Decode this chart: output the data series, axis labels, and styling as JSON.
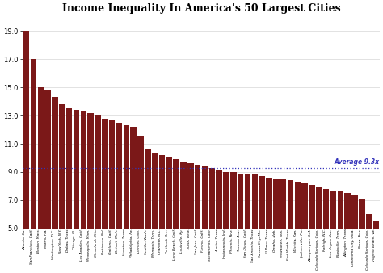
{
  "title": "Income Inequality In America's 50 Largest Cities",
  "ylim": [
    5.0,
    20.0
  ],
  "yticks": [
    5.0,
    7.0,
    9.0,
    11.0,
    13.0,
    15.0,
    17.0,
    19.0
  ],
  "average_line": 9.3,
  "average_label": "Average 9.3x",
  "bar_color": "#7B1818",
  "line_color": "#3333BB",
  "cities": [
    "Atlanta, Ga.",
    "San Francisco, Calif.",
    "Boston, Mass.",
    "Miami, Fla.",
    "Washington, D.C.",
    "New York, N.Y.",
    "Dallas, Texas",
    "Chicago, Ill.",
    "Los Angeles, Calif.",
    "Minneapolis, Minn.",
    "Cleveland, Ohio",
    "Baltimore, Md.",
    "Oakland, Calif.",
    "Detroit, Mich.",
    "Houston, Texas",
    "Philadelphia, Pa.",
    "Denver, Colo.",
    "Seattle, Wash.",
    "Memphis, Tenn.",
    "Charlotte, N.C.",
    "Portland, Ore.",
    "Long Beach, Calif.",
    "Louisville, Ky.",
    "Tulsa, Okla.",
    "San Jose, Calif.",
    "Fresno, Calif.",
    "Sacramento, Calif.",
    "Austin, Texas",
    "Indianapolis, Ind.",
    "Phoenix, Ariz.",
    "Tucson, Ariz.",
    "San Diego, Calif.",
    "San Antonio, Texas",
    "Kansas City, Mo.",
    "El Paso, Texas",
    "Omaha, Neb.",
    "Milwaukee, Wis.",
    "Fort Worth, Texas",
    "Wichita, Kan.",
    "Jacksonville, Fla.",
    "Albuquerque, N.M.",
    "Colorado Springs, Colo.",
    "Raleigh, N.C.",
    "Las Vegas, Nev.",
    "Nashville, Tenn.",
    "Arlington, Texas",
    "Oklahoma City, Okla.",
    "Mesa, Ariz.",
    "Colorado Springs, Colo.",
    "Virginia Beach, Va."
  ],
  "values": [
    19.0,
    17.0,
    15.0,
    14.8,
    14.3,
    13.8,
    13.5,
    13.4,
    13.3,
    13.2,
    13.0,
    12.8,
    12.7,
    12.5,
    12.3,
    12.2,
    11.6,
    10.6,
    10.3,
    10.2,
    10.1,
    9.9,
    9.7,
    9.6,
    9.5,
    9.4,
    9.3,
    9.1,
    9.0,
    9.0,
    8.9,
    8.8,
    8.8,
    8.7,
    8.6,
    8.5,
    8.5,
    8.4,
    8.3,
    8.2,
    8.1,
    7.9,
    7.8,
    7.7,
    7.6,
    7.5,
    7.4,
    7.1,
    6.0,
    5.5
  ]
}
